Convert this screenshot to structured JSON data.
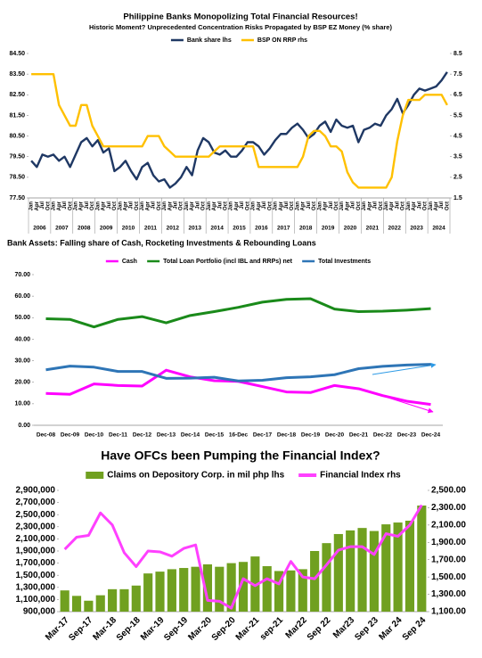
{
  "chart_data": [
    {
      "type": "line",
      "title": "Philippine Banks Monopolizing Total Financial Resources!",
      "subtitle": "Historic Moment? Unprecedented  Concentration  Risks Propagated by BSP EZ Money (% share)",
      "categories": [
        "Jan",
        "Apr",
        "Jul",
        "Oct",
        "Jan",
        "Apr",
        "Jul",
        "Oct",
        "Jan",
        "Apr",
        "Jul",
        "Oct",
        "Jan",
        "Apr",
        "Jul",
        "Oct",
        "Jan",
        "Apr",
        "Jul",
        "Oct",
        "Jan",
        "Apr",
        "Jul",
        "Oct",
        "Jan",
        "Apr",
        "Jul",
        "Oct",
        "Jan",
        "Apr",
        "Jul",
        "Oct",
        "Jan",
        "Apr",
        "Jul",
        "Oct",
        "Jan",
        "Apr",
        "Jul",
        "Oct",
        "Jan",
        "Apr",
        "Jul",
        "Oct",
        "Jan",
        "Apr",
        "Jul",
        "Oct",
        "Jan",
        "Apr",
        "Jul",
        "Oct",
        "Jan",
        "Apr",
        "Jul",
        "Oct",
        "Jan",
        "Apr",
        "Jul",
        "Oct",
        "Jan",
        "Apr",
        "Jul",
        "Oct",
        "Jan",
        "Apr",
        "Jul",
        "Oct",
        "Jan",
        "Apr",
        "Jul",
        "Oct",
        "Jan",
        "Apr",
        "Jul",
        "Oct"
      ],
      "years": [
        "2006",
        "2007",
        "2008",
        "2009",
        "2010",
        "2011",
        "2012",
        "2013",
        "2014",
        "2015",
        "2016",
        "2017",
        "2018",
        "2019",
        "2020",
        "2021",
        "2022",
        "2023",
        "2024"
      ],
      "series": [
        {
          "name": "Bank share lhs",
          "color": "#1f3864",
          "values": [
            79.3,
            79.0,
            79.6,
            79.5,
            79.6,
            79.3,
            79.5,
            79.0,
            79.6,
            80.2,
            80.4,
            80.0,
            80.3,
            79.7,
            79.9,
            78.8,
            79.0,
            79.3,
            78.8,
            78.4,
            79.0,
            79.2,
            78.6,
            78.3,
            78.4,
            78.0,
            78.2,
            78.5,
            79.0,
            78.6,
            79.8,
            80.4,
            80.2,
            79.7,
            79.6,
            79.8,
            79.5,
            79.5,
            79.8,
            80.2,
            80.2,
            80.0,
            79.6,
            79.9,
            80.3,
            80.6,
            80.6,
            80.9,
            81.1,
            80.8,
            80.4,
            80.6,
            81.0,
            81.2,
            80.7,
            81.3,
            81.0,
            80.9,
            81.0,
            80.2,
            80.8,
            80.9,
            81.1,
            81.0,
            81.5,
            81.8,
            82.3,
            81.6,
            82.0,
            82.5,
            82.8,
            82.7,
            82.8,
            82.9,
            83.2,
            83.6
          ]
        },
        {
          "name": "BSP ON RRP rhs",
          "color": "#ffc000",
          "axis": "y2",
          "values": [
            7.5,
            7.5,
            7.5,
            7.5,
            7.5,
            6.0,
            5.5,
            5.0,
            5.0,
            6.0,
            6.0,
            5.0,
            4.5,
            4.0,
            4.0,
            4.0,
            4.0,
            4.0,
            4.0,
            4.0,
            4.0,
            4.5,
            4.5,
            4.5,
            4.0,
            3.75,
            3.5,
            3.5,
            3.5,
            3.5,
            3.5,
            3.5,
            3.5,
            3.75,
            4.0,
            4.0,
            4.0,
            4.0,
            4.0,
            4.0,
            4.0,
            3.0,
            3.0,
            3.0,
            3.0,
            3.0,
            3.0,
            3.0,
            3.0,
            3.5,
            4.5,
            4.75,
            4.75,
            4.5,
            4.0,
            4.0,
            3.75,
            2.75,
            2.25,
            2.0,
            2.0,
            2.0,
            2.0,
            2.0,
            2.0,
            2.5,
            4.25,
            5.5,
            6.25,
            6.25,
            6.25,
            6.5,
            6.5,
            6.5,
            6.5,
            6.0
          ]
        }
      ],
      "ylim": [
        77.5,
        84.5
      ],
      "yticks": [
        {
          "value": 77.5,
          "label": "77.50"
        },
        {
          "value": 78.5,
          "label": "78.50"
        },
        {
          "value": 79.5,
          "label": "79.50"
        },
        {
          "value": 80.5,
          "label": "80.50"
        },
        {
          "value": 81.5,
          "label": "81.50"
        },
        {
          "value": 82.5,
          "label": "82.50"
        },
        {
          "value": 83.5,
          "label": "83.50"
        },
        {
          "value": 84.5,
          "label": "84.50"
        }
      ],
      "y2lim": [
        1.5,
        8.5
      ],
      "y2ticks": [
        1.5,
        2.5,
        3.5,
        4.5,
        5.5,
        6.5,
        7.5,
        8.5
      ],
      "legend": "top",
      "grid": false
    },
    {
      "type": "line",
      "title": "Bank Assets:  Falling share of Cash, Rocketing Investments & Rebounding Loans",
      "categories": [
        "Dec-08",
        "Dec-09",
        "Dec-10",
        "Dec-11",
        "Dec-12",
        "Dec-13",
        "Dec-14",
        "Dec-15",
        "16-Dec",
        "Dec-17",
        "Dec-18",
        "Dec-19",
        "Dec-20",
        "Dec-21",
        "Dec-22",
        "Dec-23",
        "Dec-24"
      ],
      "series": [
        {
          "name": "Cash",
          "color": "#ff00ff",
          "values": [
            14.8,
            14.4,
            19.2,
            18.5,
            18.2,
            25.6,
            22.5,
            20.7,
            20.4,
            18.0,
            15.5,
            15.2,
            18.5,
            17.0,
            13.8,
            11.2,
            9.7
          ]
        },
        {
          "name": "Total Loan Portfolio (incl IBL and RRPs) net",
          "color": "#1a8a1a",
          "values": [
            49.5,
            49.2,
            45.7,
            49.2,
            50.5,
            47.6,
            51.0,
            52.8,
            54.8,
            57.2,
            58.5,
            58.8,
            54.0,
            52.8,
            53.0,
            53.5,
            54.2
          ]
        },
        {
          "name": "Total Investments",
          "color": "#2e75b6",
          "values": [
            25.8,
            27.5,
            27.0,
            25.0,
            25.0,
            21.8,
            21.9,
            22.3,
            20.6,
            20.9,
            22.1,
            22.5,
            23.5,
            26.3,
            27.4,
            28.0,
            28.3
          ]
        }
      ],
      "ylim": [
        0,
        70
      ],
      "yticks": [
        {
          "value": 0,
          "label": "0.00"
        },
        {
          "value": 10,
          "label": "10.00"
        },
        {
          "value": 20,
          "label": "20.00"
        },
        {
          "value": 30,
          "label": "30.00"
        },
        {
          "value": 40,
          "label": "40.00"
        },
        {
          "value": 50,
          "label": "50.00"
        },
        {
          "value": 60,
          "label": "60.00"
        },
        {
          "value": 70,
          "label": "70.00"
        }
      ],
      "legend": "top",
      "grid": false
    },
    {
      "type": "combo",
      "title": "Have OFCs been Pumping the Financial Index?",
      "categories": [
        "Mar-17",
        null,
        "Sep-17",
        null,
        "Mar-18",
        null,
        "Sep-18",
        null,
        "Mar-19",
        null,
        "Sep-19",
        null,
        "Mar-20",
        null,
        "Sep-20",
        null,
        "Mar-21",
        null,
        "sep-21",
        null,
        "Mar22",
        null,
        "Sep 22",
        null,
        "Mar23",
        null,
        "Sep 23",
        null,
        "Mar 24",
        null,
        "Sep 24"
      ],
      "series": [
        {
          "name": "Claims on Depository Corp. in mil php lhs",
          "color": "#70a020",
          "type": "bar",
          "values": [
            1250000,
            1160000,
            1080000,
            1170000,
            1270000,
            1270000,
            1330000,
            1530000,
            1560000,
            1600000,
            1620000,
            1640000,
            1680000,
            1640000,
            1700000,
            1720000,
            1810000,
            1650000,
            1570000,
            1580000,
            1600000,
            1900000,
            2030000,
            2180000,
            2240000,
            2280000,
            2230000,
            2340000,
            2370000,
            2400000,
            2650000
          ]
        },
        {
          "name": "Financial Index rhs",
          "color": "#ff40ff",
          "type": "line",
          "axis": "y2",
          "values": [
            1820,
            1960,
            1980,
            2240,
            2100,
            1780,
            1620,
            1800,
            1790,
            1740,
            1830,
            1870,
            1230,
            1220,
            1140,
            1480,
            1400,
            1480,
            1420,
            1680,
            1500,
            1480,
            1640,
            1810,
            1850,
            1850,
            1760,
            2000,
            1970,
            2100,
            2330
          ]
        }
      ],
      "ylim": [
        900000,
        2900000
      ],
      "yticks": [
        {
          "value": 900000,
          "label": "900,000"
        },
        {
          "value": 1100000,
          "label": "1,100,000"
        },
        {
          "value": 1300000,
          "label": "1,300,000"
        },
        {
          "value": 1500000,
          "label": "1,500,000"
        },
        {
          "value": 1700000,
          "label": "1,700,000"
        },
        {
          "value": 1900000,
          "label": "1,900,000"
        },
        {
          "value": 2100000,
          "label": "2,100,000"
        },
        {
          "value": 2300000,
          "label": "2,300,000"
        },
        {
          "value": 2500000,
          "label": "2,500,000"
        },
        {
          "value": 2700000,
          "label": "2,700,000"
        },
        {
          "value": 2900000,
          "label": "2,900,000"
        }
      ],
      "y2lim": [
        1100,
        2500
      ],
      "y2ticks": [
        {
          "value": 1100,
          "label": "1,100.00"
        },
        {
          "value": 1300,
          "label": "1,300.00"
        },
        {
          "value": 1500,
          "label": "1,500.00"
        },
        {
          "value": 1700,
          "label": "1,700.00"
        },
        {
          "value": 1900,
          "label": "1,900.00"
        },
        {
          "value": 2100,
          "label": "2,100.00"
        },
        {
          "value": 2300,
          "label": "2,300.00"
        },
        {
          "value": 2500,
          "label": "2,500.00"
        }
      ],
      "legend": "top",
      "grid": false
    }
  ]
}
